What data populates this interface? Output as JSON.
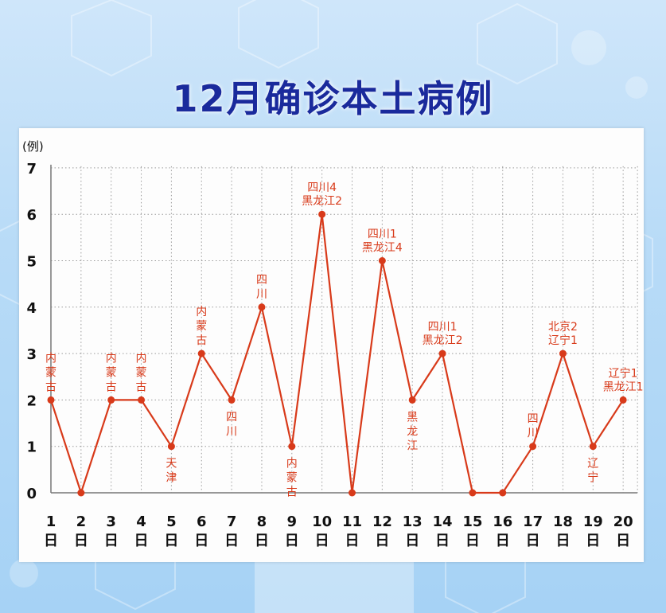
{
  "title": "12月确诊本土病例",
  "chart_data": {
    "type": "line",
    "ylabel": "(例)",
    "ylim": [
      0,
      7
    ],
    "yticks": [
      0,
      1,
      2,
      3,
      4,
      5,
      6,
      7
    ],
    "grid": true,
    "line_color": "#d83a1a",
    "categories": [
      "1日",
      "2日",
      "3日",
      "4日",
      "5日",
      "6日",
      "7日",
      "8日",
      "9日",
      "10日",
      "11日",
      "12日",
      "13日",
      "14日",
      "15日",
      "16日",
      "17日",
      "18日",
      "19日",
      "20日"
    ],
    "series": [
      {
        "values": [
          2,
          0,
          2,
          2,
          1,
          3,
          2,
          4,
          1,
          6,
          0,
          5,
          2,
          3,
          0,
          0,
          1,
          3,
          1,
          2
        ]
      }
    ],
    "annotations": [
      {
        "day": 1,
        "lines": [
          "内",
          "蒙",
          "古"
        ],
        "pos": "above-vertical"
      },
      {
        "day": 3,
        "lines": [
          "内",
          "蒙",
          "古"
        ],
        "pos": "above-vertical"
      },
      {
        "day": 4,
        "lines": [
          "内",
          "蒙",
          "古"
        ],
        "pos": "above-vertical"
      },
      {
        "day": 5,
        "lines": [
          "天",
          "津"
        ],
        "pos": "below-vertical"
      },
      {
        "day": 6,
        "lines": [
          "内",
          "蒙",
          "古"
        ],
        "pos": "above-vertical"
      },
      {
        "day": 7,
        "lines": [
          "四",
          "川"
        ],
        "pos": "below-vertical"
      },
      {
        "day": 8,
        "lines": [
          "四",
          "川"
        ],
        "pos": "above-vertical"
      },
      {
        "day": 9,
        "lines": [
          "内",
          "蒙",
          "古"
        ],
        "pos": "below-vertical"
      },
      {
        "day": 10,
        "lines": [
          "四川4",
          "黑龙江2"
        ],
        "pos": "above"
      },
      {
        "day": 12,
        "lines": [
          "四川1",
          "黑龙江4"
        ],
        "pos": "above"
      },
      {
        "day": 13,
        "lines": [
          "黑",
          "龙",
          "江"
        ],
        "pos": "below-vertical"
      },
      {
        "day": 14,
        "lines": [
          "四川1",
          "黑龙江2"
        ],
        "pos": "above"
      },
      {
        "day": 17,
        "lines": [
          "四",
          "川"
        ],
        "pos": "above-vertical"
      },
      {
        "day": 18,
        "lines": [
          "北京2",
          "辽宁1"
        ],
        "pos": "above"
      },
      {
        "day": 19,
        "lines": [
          "辽",
          "宁"
        ],
        "pos": "below-vertical"
      },
      {
        "day": 20,
        "lines": [
          "辽宁1",
          "黑龙江1"
        ],
        "pos": "above"
      }
    ]
  }
}
